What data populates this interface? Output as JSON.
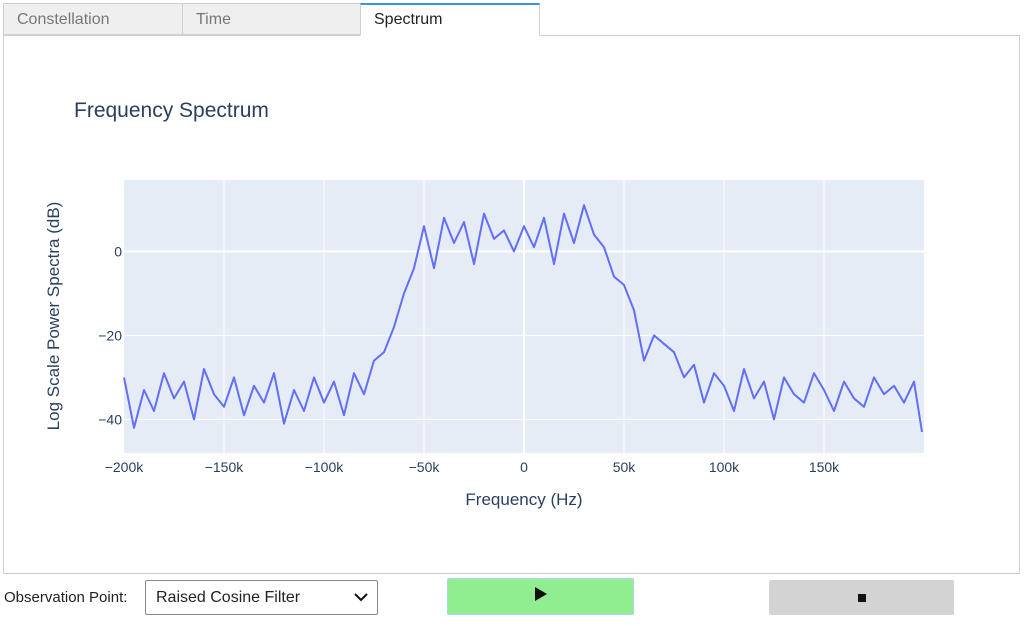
{
  "tabs": [
    {
      "label": "Constellation",
      "active": false
    },
    {
      "label": "Time",
      "active": false
    },
    {
      "label": "Spectrum",
      "active": true
    }
  ],
  "controls": {
    "observation_label": "Observation Point:",
    "observation_value": "Raised Cosine Filter",
    "play_icon": "play-icon",
    "stop_icon": "stop-icon"
  },
  "colors": {
    "trace": "#636efa",
    "plot_bg": "#e5ecf6",
    "play_bg": "#90ee90",
    "stop_bg": "#d3d3d3",
    "active_tab_accent": "#3a95d8"
  },
  "chart_data": {
    "type": "line",
    "title": "Frequency Spectrum",
    "xlabel": "Frequency (Hz)",
    "ylabel": "Log Scale Power Spectra (dB)",
    "xlim": [
      -200000,
      200000
    ],
    "ylim": [
      -48,
      17
    ],
    "xticks": [
      -200000,
      -150000,
      -100000,
      -50000,
      0,
      50000,
      100000,
      150000
    ],
    "xtick_labels": [
      "−200k",
      "−150k",
      "−100k",
      "−50k",
      "0",
      "50k",
      "100k",
      "150k"
    ],
    "yticks": [
      -40,
      -20,
      0
    ],
    "ytick_labels": [
      "−40",
      "−20",
      "0"
    ],
    "grid": true,
    "legend": "none",
    "series": [
      {
        "x": [
          -200000,
          -195000,
          -190000,
          -185000,
          -180000,
          -175000,
          -170000,
          -165000,
          -160000,
          -155000,
          -150000,
          -145000,
          -140000,
          -135000,
          -130000,
          -125000,
          -120000,
          -115000,
          -110000,
          -105000,
          -100000,
          -95000,
          -90000,
          -85000,
          -80000,
          -75000,
          -70000,
          -65000,
          -60000,
          -55000,
          -50000,
          -45000,
          -40000,
          -35000,
          -30000,
          -25000,
          -20000,
          -15000,
          -10000,
          -5000,
          0,
          5000,
          10000,
          15000,
          20000,
          25000,
          30000,
          35000,
          40000,
          45000,
          50000,
          55000,
          60000,
          65000,
          70000,
          75000,
          80000,
          85000,
          90000,
          95000,
          100000,
          105000,
          110000,
          115000,
          120000,
          125000,
          130000,
          135000,
          140000,
          145000,
          150000,
          155000,
          160000,
          165000,
          170000,
          175000,
          180000,
          185000,
          190000,
          195000,
          199000
        ],
        "values": [
          -30,
          -42,
          -33,
          -38,
          -29,
          -35,
          -31,
          -40,
          -28,
          -34,
          -37,
          -30,
          -39,
          -32,
          -36,
          -29,
          -41,
          -33,
          -38,
          -30,
          -36,
          -31,
          -39,
          -29,
          -34,
          -26,
          -24,
          -18,
          -10,
          -4,
          6,
          -4,
          8,
          2,
          7,
          -3,
          9,
          3,
          5,
          0,
          6,
          1,
          8,
          -3,
          9,
          2,
          11,
          4,
          1,
          -6,
          -8,
          -14,
          -26,
          -20,
          -22,
          -24,
          -30,
          -27,
          -36,
          -29,
          -32,
          -38,
          -28,
          -35,
          -31,
          -40,
          -30,
          -34,
          -36,
          -29,
          -33,
          -38,
          -31,
          -35,
          -37,
          -30,
          -34,
          -32,
          -36,
          -31,
          -43
        ]
      }
    ]
  }
}
